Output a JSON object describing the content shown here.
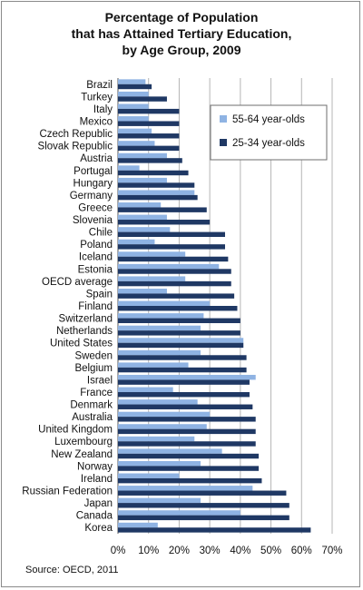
{
  "chart_data": {
    "type": "bar",
    "orientation": "horizontal",
    "title_lines": [
      "Percentage of Population",
      "that has Attained Tertiary Education,",
      "by Age Group, 2009"
    ],
    "categories": [
      "Brazil",
      "Turkey",
      "Italy",
      "Mexico",
      "Czech Republic",
      "Slovak Republic",
      "Austria",
      "Portugal",
      "Hungary",
      "Germany",
      "Greece",
      "Slovenia",
      "Chile",
      "Poland",
      "Iceland",
      "Estonia",
      "OECD average",
      "Spain",
      "Finland",
      "Switzerland",
      "Netherlands",
      "United States",
      "Sweden",
      "Belgium",
      "Israel",
      "France",
      "Denmark",
      "Australia",
      "United Kingdom",
      "Luxembourg",
      "New Zealand",
      "Norway",
      "Ireland",
      "Russian Federation",
      "Japan",
      "Canada",
      "Korea"
    ],
    "series": [
      {
        "name": "55-64 year-olds",
        "color": "#8fb3e3",
        "values": [
          9,
          10,
          10,
          10,
          11,
          12,
          16,
          7,
          16,
          25,
          14,
          16,
          17,
          12,
          22,
          33,
          22,
          16,
          30,
          28,
          27,
          41,
          27,
          23,
          45,
          18,
          26,
          30,
          29,
          25,
          34,
          27,
          20,
          44,
          27,
          40,
          13
        ]
      },
      {
        "name": "25-34 year-olds",
        "color": "#1f3864",
        "values": [
          11,
          16,
          20,
          20,
          20,
          20,
          21,
          23,
          25,
          26,
          29,
          30,
          35,
          35,
          36,
          37,
          37,
          38,
          39,
          40,
          40,
          41,
          42,
          42,
          43,
          43,
          44,
          45,
          45,
          45,
          46,
          46,
          47,
          55,
          56,
          56,
          63
        ]
      }
    ],
    "xlim": [
      0,
      70
    ],
    "xticks": [
      "0%",
      "10%",
      "20%",
      "30%",
      "40%",
      "50%",
      "60%",
      "70%"
    ],
    "grid": true,
    "legend": "top-right"
  },
  "source": "Source: OECD, 2011"
}
